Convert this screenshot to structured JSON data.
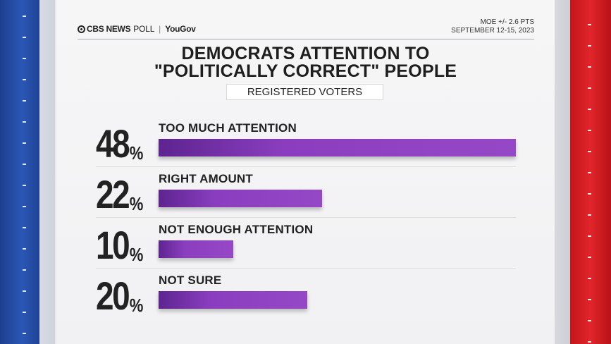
{
  "header": {
    "brand_cbs": "CBS NEWS",
    "brand_poll": "POLL",
    "brand_separator": "|",
    "brand_partner": "YouGov",
    "moe": "MOE +/- 2.6 PTS",
    "dates": "SEPTEMBER 12-15, 2023"
  },
  "chart_data": {
    "type": "bar",
    "title_line1": "DEMOCRATS ATTENTION TO",
    "title_line2": "\"POLITICALLY CORRECT\" PEOPLE",
    "subtitle": "REGISTERED VOTERS",
    "categories": [
      "TOO MUCH ATTENTION",
      "RIGHT AMOUNT",
      "NOT ENOUGH ATTENTION",
      "NOT SURE"
    ],
    "values": [
      48,
      22,
      10,
      20
    ],
    "value_labels": [
      "48",
      "22",
      "10",
      "20"
    ],
    "unit": "%",
    "xlim": [
      0,
      48
    ],
    "orientation": "horizontal",
    "bar_color": "#8a3ebf"
  },
  "colors": {
    "left_stripe": "#2b57b5",
    "right_stripe": "#e0252b",
    "text": "#222222"
  }
}
